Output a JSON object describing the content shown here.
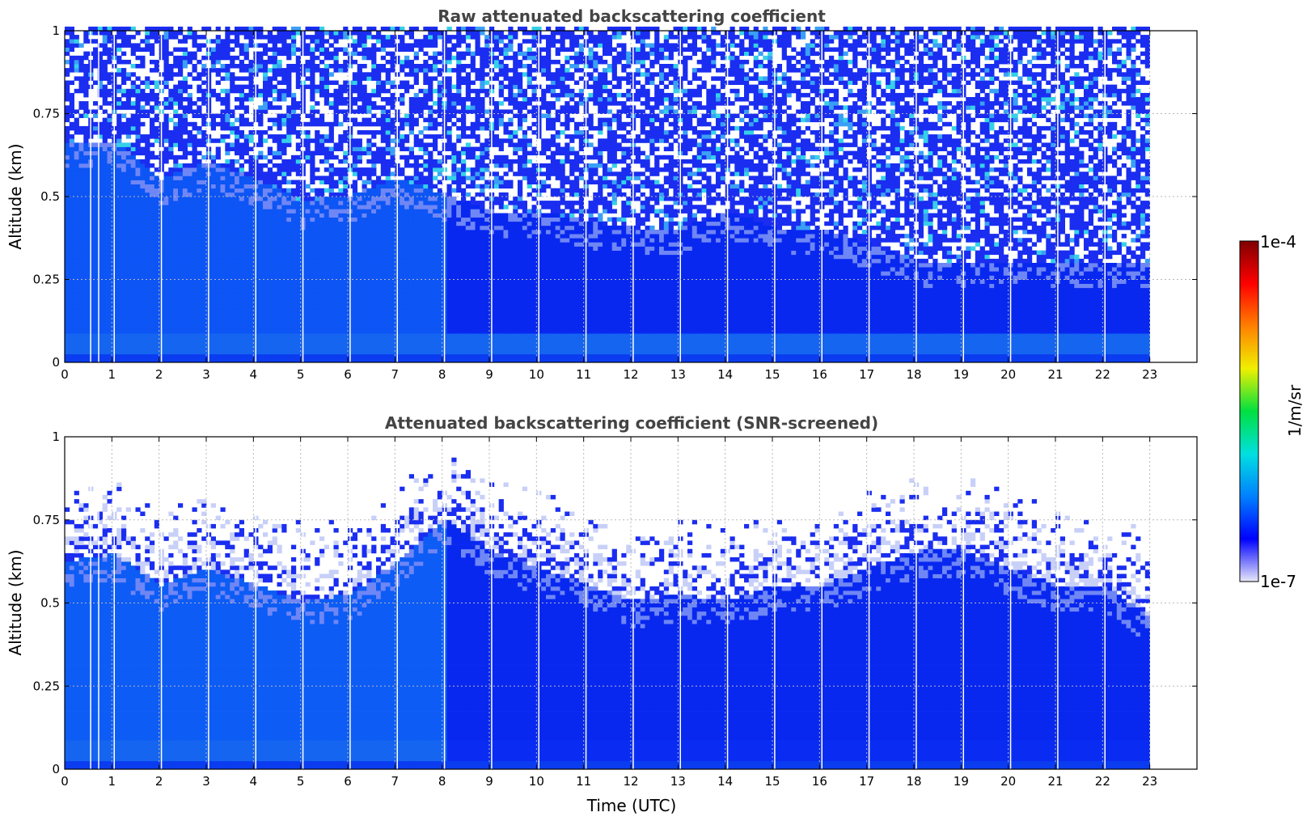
{
  "chart_data": [
    {
      "type": "heatmap",
      "title": "Raw attenuated backscattering coefficient",
      "xlabel": "",
      "ylabel": "Altitude (km)",
      "xlim": [
        0,
        24
      ],
      "ylim": [
        0,
        1
      ],
      "xticks": [
        "0",
        "1",
        "2",
        "3",
        "4",
        "5",
        "6",
        "7",
        "8",
        "9",
        "10",
        "11",
        "12",
        "13",
        "14",
        "15",
        "16",
        "17",
        "18",
        "19",
        "20",
        "21",
        "22",
        "23"
      ],
      "yticks": [
        "0",
        "0.25",
        "0.5",
        "0.75",
        "1"
      ],
      "grid": true,
      "data_extent_hours": 23,
      "layer_top_km": [
        [
          0,
          0.65
        ],
        [
          1,
          0.66
        ],
        [
          2,
          0.55
        ],
        [
          3,
          0.6
        ],
        [
          4,
          0.55
        ],
        [
          5,
          0.48
        ],
        [
          6,
          0.5
        ],
        [
          7,
          0.55
        ],
        [
          8,
          0.5
        ],
        [
          9,
          0.45
        ],
        [
          10,
          0.45
        ],
        [
          11,
          0.42
        ],
        [
          12,
          0.4
        ],
        [
          13,
          0.4
        ],
        [
          14,
          0.45
        ],
        [
          15,
          0.4
        ],
        [
          16,
          0.4
        ],
        [
          17,
          0.35
        ],
        [
          18,
          0.3
        ],
        [
          19,
          0.3
        ],
        [
          20,
          0.3
        ],
        [
          21,
          0.3
        ],
        [
          22,
          0.3
        ],
        [
          23,
          0.3
        ]
      ],
      "gap_times_utc": [
        0.55,
        0.72,
        1.05,
        2.05,
        3.05,
        4.05,
        5.05,
        6.05,
        7.05,
        8.05,
        9.05,
        10.05,
        11.05,
        12.05,
        13.05,
        14.05,
        15.05,
        16.05,
        17.05,
        18.05,
        19.05,
        20.05,
        21.05,
        22.05
      ]
    },
    {
      "type": "heatmap",
      "title": "Attenuated backscattering coefficient (SNR-screened)",
      "xlabel": "Time (UTC)",
      "ylabel": "Altitude (km)",
      "xlim": [
        0,
        24
      ],
      "ylim": [
        0,
        1
      ],
      "xticks": [
        "0",
        "1",
        "2",
        "3",
        "4",
        "5",
        "6",
        "7",
        "8",
        "9",
        "10",
        "11",
        "12",
        "13",
        "14",
        "15",
        "16",
        "17",
        "18",
        "19",
        "20",
        "21",
        "22",
        "23"
      ],
      "yticks": [
        "0",
        "0.25",
        "0.5",
        "0.75",
        "1"
      ],
      "grid": true,
      "data_extent_hours": 23,
      "layer_top_km": [
        [
          0,
          0.62
        ],
        [
          1,
          0.64
        ],
        [
          2,
          0.55
        ],
        [
          3,
          0.6
        ],
        [
          4,
          0.55
        ],
        [
          5,
          0.5
        ],
        [
          6,
          0.52
        ],
        [
          7,
          0.62
        ],
        [
          8,
          0.75
        ],
        [
          9,
          0.65
        ],
        [
          10,
          0.6
        ],
        [
          11,
          0.55
        ],
        [
          12,
          0.5
        ],
        [
          13,
          0.52
        ],
        [
          14,
          0.5
        ],
        [
          15,
          0.55
        ],
        [
          16,
          0.55
        ],
        [
          17,
          0.6
        ],
        [
          18,
          0.65
        ],
        [
          19,
          0.65
        ],
        [
          20,
          0.6
        ],
        [
          21,
          0.55
        ],
        [
          22,
          0.55
        ],
        [
          23,
          0.45
        ]
      ],
      "gap_times_utc": [
        0.55,
        0.72,
        1.05,
        2.05,
        3.05,
        4.05,
        5.05,
        6.05,
        7.05,
        8.05,
        9.05,
        10.05,
        11.05,
        12.05,
        13.05,
        14.05,
        15.05,
        16.05,
        17.05,
        18.05,
        19.05,
        20.05,
        21.05,
        22.05
      ]
    }
  ],
  "colorbar": {
    "label": "1/m/sr",
    "max_label": "1e-4",
    "min_label": "1e-7",
    "scale": "log",
    "range": [
      1e-07,
      0.0001
    ],
    "colormap": [
      "#e8e8f8",
      "#0000ff",
      "#0080ff",
      "#00e0e0",
      "#00e040",
      "#f0f000",
      "#ff8000",
      "#ff0000",
      "#800000"
    ]
  }
}
